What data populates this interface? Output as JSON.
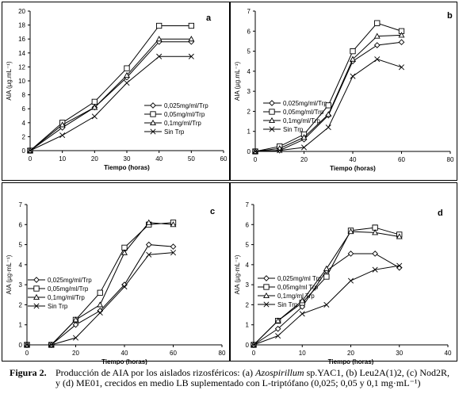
{
  "chart_data": [
    {
      "type": "line",
      "label": "a",
      "x_label": "Tiempo (horas)",
      "y_label": "AIA (µg.mL⁻¹)",
      "x": [
        0,
        10,
        20,
        30,
        40,
        50
      ],
      "series": [
        {
          "name": "0,025mg/ml/Trp",
          "marker": "diamond",
          "color": "#000000",
          "values": [
            0,
            3.3,
            6.2,
            10.5,
            15.6,
            15.6
          ]
        },
        {
          "name": "0,05mg/ml/Trp",
          "marker": "square",
          "color": "#000000",
          "values": [
            0,
            4,
            7,
            11.8,
            17.9,
            17.9
          ]
        },
        {
          "name": "0,1mg/ml/Trp",
          "marker": "triangle",
          "color": "#000000",
          "values": [
            0,
            3.7,
            6.2,
            10.8,
            16,
            16
          ]
        },
        {
          "name": "Sin Trp",
          "marker": "x",
          "color": "#000000",
          "values": [
            0,
            2.2,
            4.9,
            9.7,
            13.5,
            13.5
          ]
        }
      ],
      "xlim": [
        0,
        60
      ],
      "xticks": [
        0,
        10,
        20,
        30,
        40,
        50,
        60
      ],
      "ylim": [
        0,
        20
      ],
      "yticks": [
        0,
        2,
        4,
        6,
        8,
        10,
        12,
        14,
        16,
        18,
        20
      ]
    },
    {
      "type": "line",
      "label": "b",
      "x_label": "Tiempo (horas)",
      "y_label": "AIA (µg.mL⁻¹)",
      "x": [
        0,
        10,
        20,
        30,
        40,
        50,
        60
      ],
      "series": [
        {
          "name": "0,025mg/ml/Trp",
          "marker": "diamond",
          "color": "#000000",
          "values": [
            0,
            0.05,
            0.6,
            1.8,
            4.5,
            5.3,
            5.45
          ]
        },
        {
          "name": "0,05mg/ml/Trp",
          "marker": "square",
          "color": "#000000",
          "values": [
            0,
            0.25,
            0.85,
            2.3,
            5.0,
            6.4,
            6.0
          ]
        },
        {
          "name": "0,1mg/ml/Trp",
          "marker": "triangle",
          "color": "#000000",
          "values": [
            0,
            0.15,
            0.7,
            1.85,
            4.6,
            5.75,
            5.8
          ]
        },
        {
          "name": "Sin Trp",
          "marker": "x",
          "color": "#000000",
          "values": [
            0,
            0.05,
            0.2,
            1.2,
            3.75,
            4.6,
            4.2
          ]
        }
      ],
      "xlim": [
        0,
        80
      ],
      "xticks": [
        0,
        20,
        40,
        60,
        80
      ],
      "ylim": [
        0,
        7
      ],
      "yticks": [
        0,
        1,
        2,
        3,
        4,
        5,
        6,
        7
      ]
    },
    {
      "type": "line",
      "label": "c",
      "x_label": "Tiempo (horas)",
      "y_label": "AIA (µg·mL⁻¹)",
      "x": [
        0,
        10,
        20,
        30,
        40,
        50,
        60
      ],
      "series": [
        {
          "name": "0,025mg/ml/Trp",
          "marker": "diamond",
          "color": "#000000",
          "values": [
            0,
            0,
            1.0,
            1.7,
            3.0,
            5.0,
            4.9
          ]
        },
        {
          "name": "0,05mg/ml/Trp",
          "marker": "square",
          "color": "#000000",
          "values": [
            0,
            0,
            1.25,
            2.6,
            4.85,
            6.0,
            6.1
          ]
        },
        {
          "name": "0,1mg/ml/Trp",
          "marker": "triangle",
          "color": "#000000",
          "values": [
            0,
            0,
            1.25,
            2.0,
            4.6,
            6.1,
            6.0
          ]
        },
        {
          "name": "Sin Trp",
          "marker": "x",
          "color": "#000000",
          "values": [
            0,
            0,
            0.35,
            1.6,
            2.9,
            4.5,
            4.6
          ]
        }
      ],
      "xlim": [
        0,
        80
      ],
      "xticks": [
        0,
        20,
        40,
        60,
        80
      ],
      "ylim": [
        0,
        7
      ],
      "yticks": [
        0,
        1,
        2,
        3,
        4,
        5,
        6,
        7
      ]
    },
    {
      "type": "line",
      "label": "d",
      "x_label": "Tiempo (horas)",
      "y_label": "AIA (µg·mL⁻¹)",
      "x": [
        0,
        5,
        10,
        15,
        20,
        25,
        30
      ],
      "series": [
        {
          "name": "0,025mg/ml Trp",
          "marker": "diamond",
          "color": "#000000",
          "values": [
            0,
            0.8,
            1.9,
            3.7,
            4.55,
            4.55,
            3.85
          ]
        },
        {
          "name": "0,05mg/ml Trp",
          "marker": "square",
          "color": "#000000",
          "values": [
            0,
            1.2,
            2.1,
            3.4,
            5.7,
            5.85,
            5.5
          ]
        },
        {
          "name": "0,1mg/ml Trp",
          "marker": "triangle",
          "color": "#000000",
          "values": [
            0,
            1.2,
            2.2,
            3.8,
            5.65,
            5.6,
            5.4
          ]
        },
        {
          "name": "Sin Trp",
          "marker": "x",
          "color": "#000000",
          "values": [
            0,
            0.45,
            1.55,
            2.0,
            3.2,
            3.75,
            3.95
          ]
        }
      ],
      "xlim": [
        0,
        40
      ],
      "xticks": [
        0,
        10,
        20,
        30,
        40
      ],
      "ylim": [
        0,
        7
      ],
      "yticks": [
        0,
        1,
        2,
        3,
        4,
        5,
        6,
        7
      ]
    }
  ],
  "caption": {
    "label": "Figura 2.",
    "text_before": "Producción de AIA por los aislados rizosféricos: (a) ",
    "italic": "Azospirillum",
    "text_after": " sp.YAC1, (b) Leu2A(1)2, (c) Nod2R, y (d) ME01, crecidos en medio LB suplementado con L-triptófano (0,025; 0,05 y 0,1 mg·mL⁻¹)"
  }
}
